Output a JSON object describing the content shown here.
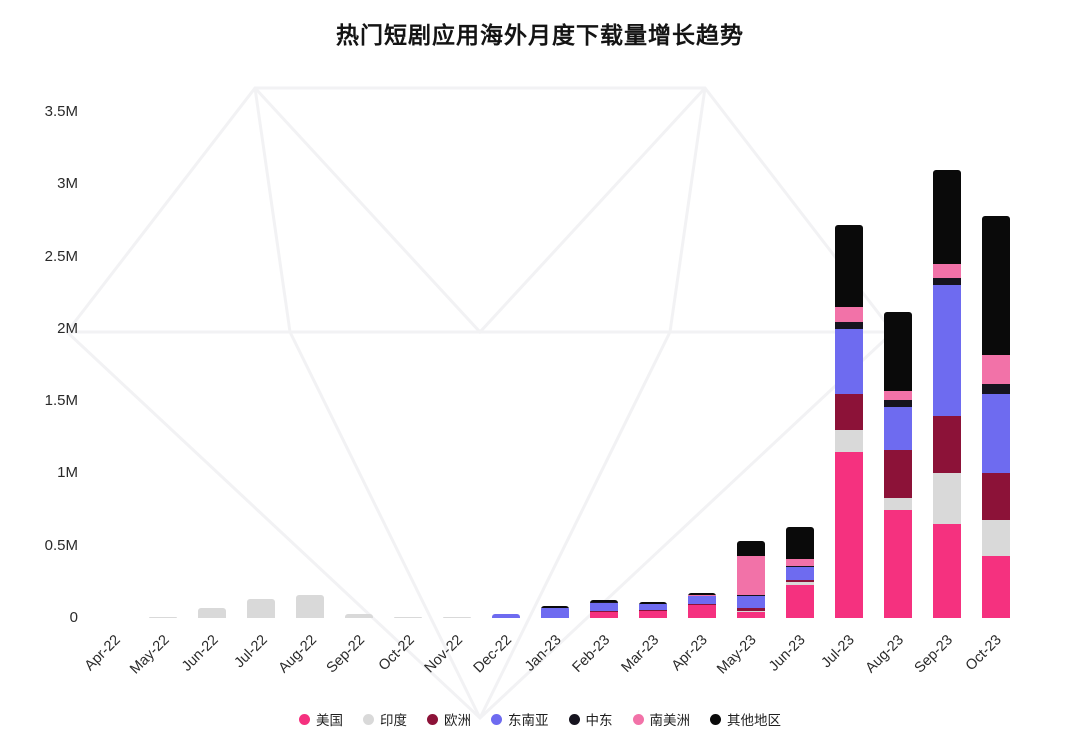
{
  "page": {
    "background": "#ffffff"
  },
  "chart_data": {
    "type": "bar",
    "stacked": true,
    "title": "热门短剧应用海外月度下载量增长趋势",
    "xlabel": "",
    "ylabel": "",
    "unit": "monthly downloads (M = millions)",
    "ylim": [
      0,
      3.5
    ],
    "yticks": [
      "0",
      "0.5M",
      "1M",
      "1.5M",
      "2M",
      "2.5M",
      "3M",
      "3.5M"
    ],
    "grid": false,
    "legend_position": "bottom",
    "categories": [
      "Apr-22",
      "May-22",
      "Jun-22",
      "Jul-22",
      "Aug-22",
      "Sep-22",
      "Oct-22",
      "Nov-22",
      "Dec-22",
      "Jan-23",
      "Feb-23",
      "Mar-23",
      "Apr-23",
      "May-23",
      "Jun-23",
      "Jul-23",
      "Aug-23",
      "Sep-23",
      "Oct-23"
    ],
    "series": [
      {
        "name": "美国",
        "color": "#F5317F",
        "values": [
          0,
          0,
          0,
          0,
          0,
          0,
          0,
          0,
          0,
          0,
          0.04,
          0.05,
          0.09,
          0.04,
          0.23,
          1.15,
          0.75,
          0.65,
          0.43
        ]
      },
      {
        "name": "印度",
        "color": "#D9D9D9",
        "values": [
          0,
          0.005,
          0.07,
          0.13,
          0.16,
          0.03,
          0.005,
          0.01,
          0,
          0,
          0,
          0,
          0,
          0.01,
          0.02,
          0.15,
          0.08,
          0.35,
          0.25
        ]
      },
      {
        "name": "欧洲",
        "color": "#8C1238",
        "values": [
          0,
          0,
          0,
          0,
          0,
          0,
          0,
          0,
          0,
          0,
          0.005,
          0.005,
          0.01,
          0.02,
          0.01,
          0.25,
          0.33,
          0.4,
          0.32
        ]
      },
      {
        "name": "东南亚",
        "color": "#6E6BF0",
        "values": [
          0,
          0,
          0,
          0,
          0,
          0,
          0,
          0,
          0.03,
          0.07,
          0.06,
          0.04,
          0.05,
          0.08,
          0.09,
          0.45,
          0.3,
          0.9,
          0.55
        ]
      },
      {
        "name": "中东",
        "color": "#16141F",
        "values": [
          0,
          0,
          0,
          0,
          0,
          0,
          0,
          0,
          0,
          0,
          0.005,
          0.005,
          0.005,
          0.01,
          0.01,
          0.05,
          0.05,
          0.05,
          0.07
        ]
      },
      {
        "name": "南美洲",
        "color": "#F272A8",
        "values": [
          0,
          0,
          0,
          0,
          0,
          0,
          0,
          0,
          0,
          0,
          0,
          0,
          0.005,
          0.27,
          0.05,
          0.1,
          0.06,
          0.1,
          0.2
        ]
      },
      {
        "name": "其他地区",
        "color": "#0A0A0A",
        "values": [
          0,
          0,
          0,
          0,
          0,
          0,
          0,
          0,
          0,
          0.01,
          0.015,
          0.01,
          0.015,
          0.1,
          0.22,
          0.57,
          0.55,
          0.65,
          0.96
        ]
      }
    ]
  }
}
